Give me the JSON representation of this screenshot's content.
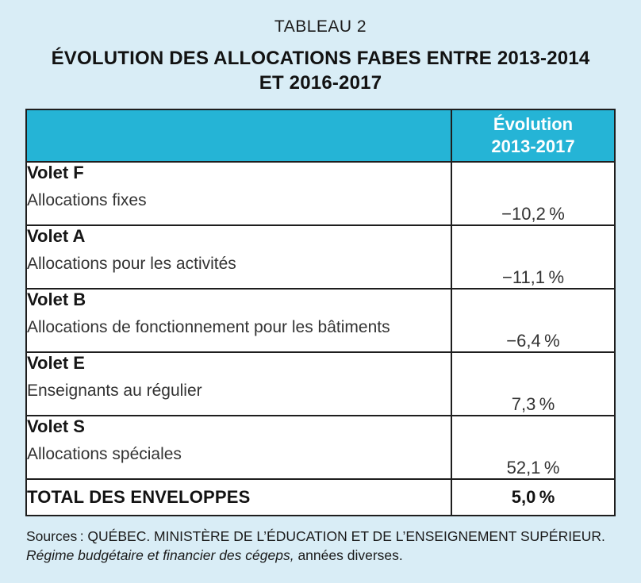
{
  "page": {
    "background_color": "#d9edf6",
    "accent_color": "#25b4d6",
    "border_color": "#1e1e1e"
  },
  "title": {
    "kicker": "TABLEAU 2",
    "line1": "ÉVOLUTION DES ALLOCATIONS FABES ENTRE 2013-2014",
    "line2": "ET 2016-2017"
  },
  "table": {
    "header": {
      "col2_line1": "Évolution",
      "col2_line2": "2013-2017"
    },
    "rows": [
      {
        "label": "Volet F",
        "description": "Allocations fixes",
        "value": "−10,2 %"
      },
      {
        "label": "Volet A",
        "description": "Allocations pour les activités",
        "value": "−11,1 %"
      },
      {
        "label": "Volet B",
        "description": "Allocations de fonctionnement pour les bâtiments",
        "value": "−6,4 %"
      },
      {
        "label": "Volet E",
        "description": "Enseignants au régulier",
        "value": "7,3 %"
      },
      {
        "label": "Volet S",
        "description": "Allocations spéciales",
        "value": "52,1 %"
      }
    ],
    "total": {
      "label": "TOTAL DES ENVELOPPES",
      "value": "5,0 %"
    }
  },
  "footer": {
    "sources_line1": "Sources : QUÉBEC. MINISTÈRE DE L’ÉDUCATION ET DE L’ENSEIGNEMENT SUPÉRIEUR.",
    "sources_italic": "Régime budgétaire et financier des cégeps,",
    "sources_suffix": " années diverses."
  }
}
